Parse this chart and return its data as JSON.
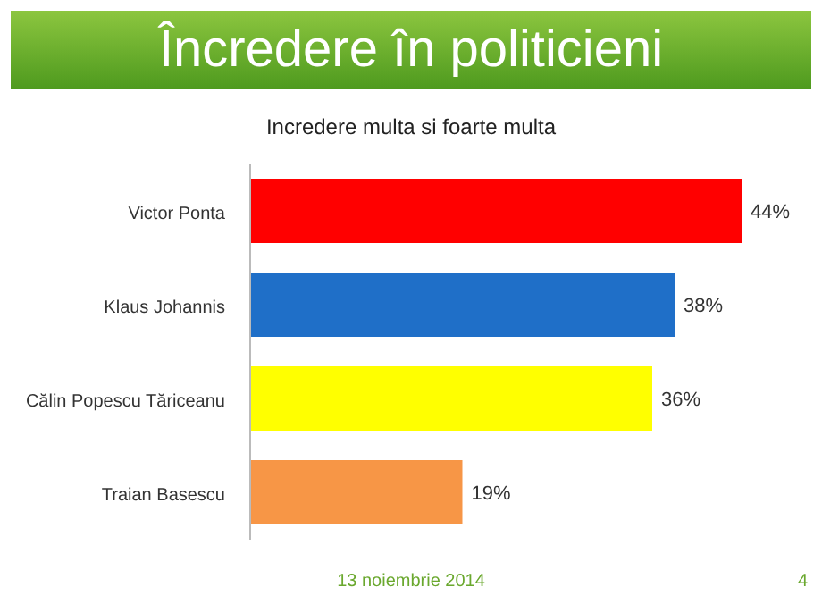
{
  "chart_data": {
    "type": "bar",
    "orientation": "horizontal",
    "title": "Încredere în politicieni",
    "subtitle": "Incredere multa si foarte multa",
    "categories": [
      "Victor Ponta",
      "Klaus Johannis",
      "Călin Popescu Tăriceanu",
      "Traian Basescu"
    ],
    "values": [
      44,
      38,
      36,
      19
    ],
    "colors": [
      "#ff0000",
      "#1f6fc8",
      "#ffff00",
      "#f79646"
    ],
    "value_labels": [
      "44%",
      "38%",
      "36%",
      "19%"
    ],
    "annotations": [
      "13 noiembrie 2014",
      "4"
    ]
  }
}
